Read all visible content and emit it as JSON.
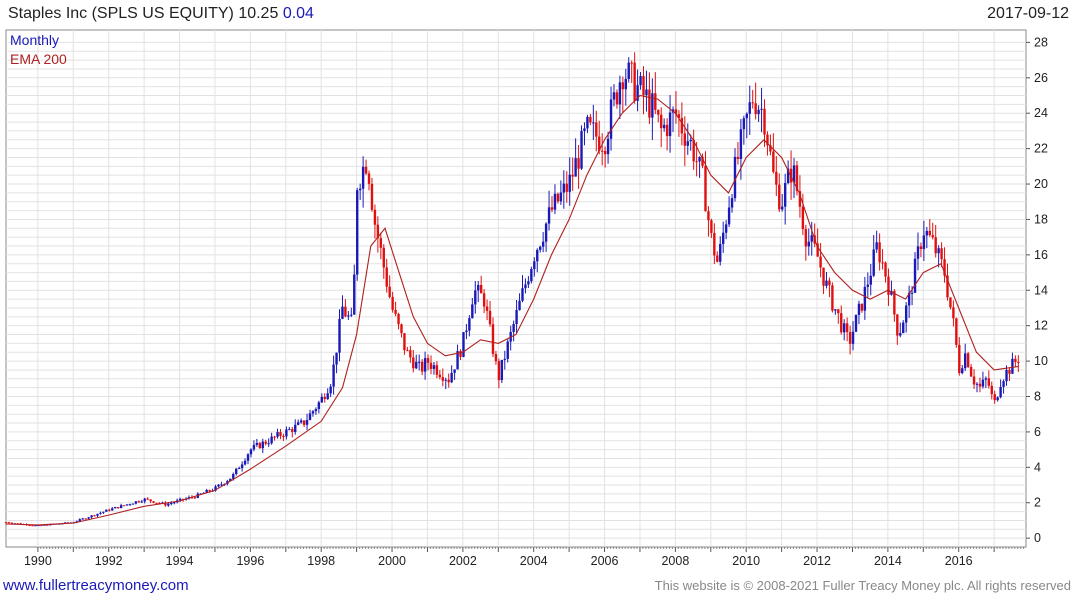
{
  "header": {
    "title": "Staples Inc (SPLS US EQUITY)",
    "last": "10.25",
    "change": "0.04",
    "date": "2017-09-12"
  },
  "footer": {
    "site": "www.fullertreacymoney.com",
    "copyright": "This website is © 2008-2021 Fuller Treacy Money plc. All rights reserved"
  },
  "colors": {
    "up": "#1a1ab8",
    "down": "#e01010",
    "ema": "#b02020",
    "grid": "#e2e2e2"
  },
  "chart_data": {
    "type": "line",
    "subtype": "candlestick",
    "legend": [
      "Monthly",
      "EMA 200"
    ],
    "legend_position": "top-left",
    "x_ticks": [
      "1990",
      "1992",
      "1994",
      "1996",
      "1998",
      "2000",
      "2002",
      "2004",
      "2006",
      "2008",
      "2010",
      "2012",
      "2014",
      "2016"
    ],
    "y_ticks": [
      "0",
      "2",
      "4",
      "6",
      "8",
      "10",
      "12",
      "14",
      "16",
      "18",
      "20",
      "22",
      "24",
      "26",
      "28"
    ],
    "xlim": [
      1989.1,
      2017.9
    ],
    "ylim": [
      -0.5,
      28.7
    ],
    "grid": true,
    "y_axis_side": "right",
    "series": [
      {
        "name": "Monthly",
        "x": [
          1989.1,
          1990.0,
          1991.0,
          1992.0,
          1993.0,
          1993.6,
          1994.5,
          1995.0,
          1995.5,
          1996.0,
          1996.5,
          1997.0,
          1997.5,
          1998.0,
          1998.3,
          1998.6,
          1998.9,
          1999.0,
          1999.3,
          1999.5,
          1999.8,
          2000.0,
          2000.4,
          2000.8,
          2001.0,
          2001.3,
          2001.6,
          2002.0,
          2002.3,
          2002.6,
          2003.0,
          2003.5,
          2004.0,
          2004.5,
          2005.0,
          2005.5,
          2006.0,
          2006.5,
          2006.9,
          2007.3,
          2007.6,
          2008.0,
          2008.5,
          2008.8,
          2009.0,
          2009.2,
          2009.6,
          2010.0,
          2010.2,
          2010.5,
          2010.8,
          2011.0,
          2011.3,
          2011.7,
          2012.0,
          2012.3,
          2012.6,
          2012.9,
          2013.3,
          2013.7,
          2014.0,
          2014.3,
          2014.6,
          2015.0,
          2015.3,
          2015.6,
          2015.9,
          2016.0,
          2016.2,
          2016.4,
          2016.6,
          2016.8,
          2017.0,
          2017.2,
          2017.4,
          2017.7
        ],
        "values": [
          0.9,
          0.7,
          0.9,
          1.6,
          2.2,
          1.9,
          2.4,
          2.8,
          3.5,
          5.0,
          5.5,
          6.0,
          6.5,
          7.8,
          9.0,
          13.0,
          12.0,
          20.0,
          21.5,
          18.0,
          15.0,
          13.0,
          10.5,
          9.5,
          10.0,
          9.5,
          9.0,
          11.0,
          14.0,
          13.5,
          9.0,
          12.5,
          16.0,
          18.5,
          20.0,
          23.0,
          22.5,
          26.5,
          25.5,
          24.5,
          23.0,
          24.0,
          22.0,
          20.0,
          17.0,
          15.5,
          20.0,
          23.5,
          25.0,
          24.0,
          20.0,
          19.0,
          21.0,
          17.0,
          16.0,
          14.0,
          12.5,
          11.0,
          13.5,
          16.5,
          14.5,
          11.5,
          13.5,
          17.5,
          16.5,
          15.0,
          11.5,
          9.5,
          10.5,
          9.0,
          8.5,
          9.0,
          7.5,
          9.0,
          9.5,
          10.2
        ]
      },
      {
        "name": "EMA 200",
        "x": [
          1989.1,
          1990.0,
          1991.0,
          1992.0,
          1993.0,
          1994.0,
          1995.0,
          1996.0,
          1997.0,
          1998.0,
          1998.6,
          1999.0,
          1999.4,
          1999.8,
          2000.2,
          2000.6,
          2001.0,
          2001.5,
          2002.0,
          2002.5,
          2003.0,
          2003.5,
          2004.0,
          2004.5,
          2005.0,
          2005.5,
          2006.0,
          2006.5,
          2007.0,
          2007.5,
          2008.0,
          2008.5,
          2009.0,
          2009.5,
          2010.0,
          2010.5,
          2011.0,
          2011.5,
          2012.0,
          2012.5,
          2013.0,
          2013.5,
          2014.0,
          2014.5,
          2015.0,
          2015.5,
          2016.0,
          2016.5,
          2017.0,
          2017.7
        ],
        "values": [
          0.8,
          0.75,
          0.85,
          1.3,
          1.8,
          2.1,
          2.7,
          3.9,
          5.2,
          6.6,
          8.5,
          11.5,
          16.5,
          17.5,
          15.0,
          12.5,
          11.0,
          10.3,
          10.5,
          11.2,
          11.0,
          11.5,
          13.5,
          16.0,
          18.0,
          20.5,
          22.5,
          24.0,
          25.0,
          24.8,
          24.0,
          22.5,
          20.5,
          19.5,
          21.5,
          22.5,
          21.5,
          19.5,
          16.5,
          15.0,
          14.0,
          13.5,
          14.0,
          13.5,
          15.0,
          15.5,
          13.0,
          10.5,
          9.5,
          9.7
        ]
      }
    ]
  }
}
